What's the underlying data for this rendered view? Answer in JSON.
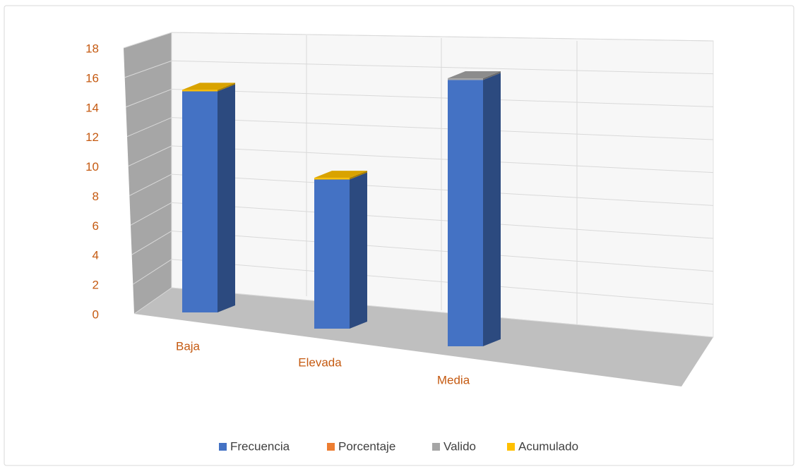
{
  "chart_data": {
    "type": "bar3d_stacked",
    "categories": [
      "Baja",
      "Elevada",
      "Media",
      null
    ],
    "series": [
      {
        "name": "Frecuencia",
        "color": "#4472c4",
        "values": [
          15,
          9,
          16,
          null
        ]
      },
      {
        "name": "Porcentaje",
        "color": "#ed7d31",
        "values": [
          0,
          0,
          0,
          null
        ]
      },
      {
        "name": "Valido",
        "color": "#a5a5a5",
        "values": [
          0,
          0,
          0.1,
          null
        ]
      },
      {
        "name": "Acumulado",
        "color": "#ffc000",
        "values": [
          0.1,
          0.1,
          0,
          null
        ]
      }
    ],
    "ylim": [
      0,
      18
    ],
    "yticks": [
      0,
      2,
      4,
      6,
      8,
      10,
      12,
      14,
      16,
      18
    ],
    "grid": true,
    "legend": "bottom"
  }
}
